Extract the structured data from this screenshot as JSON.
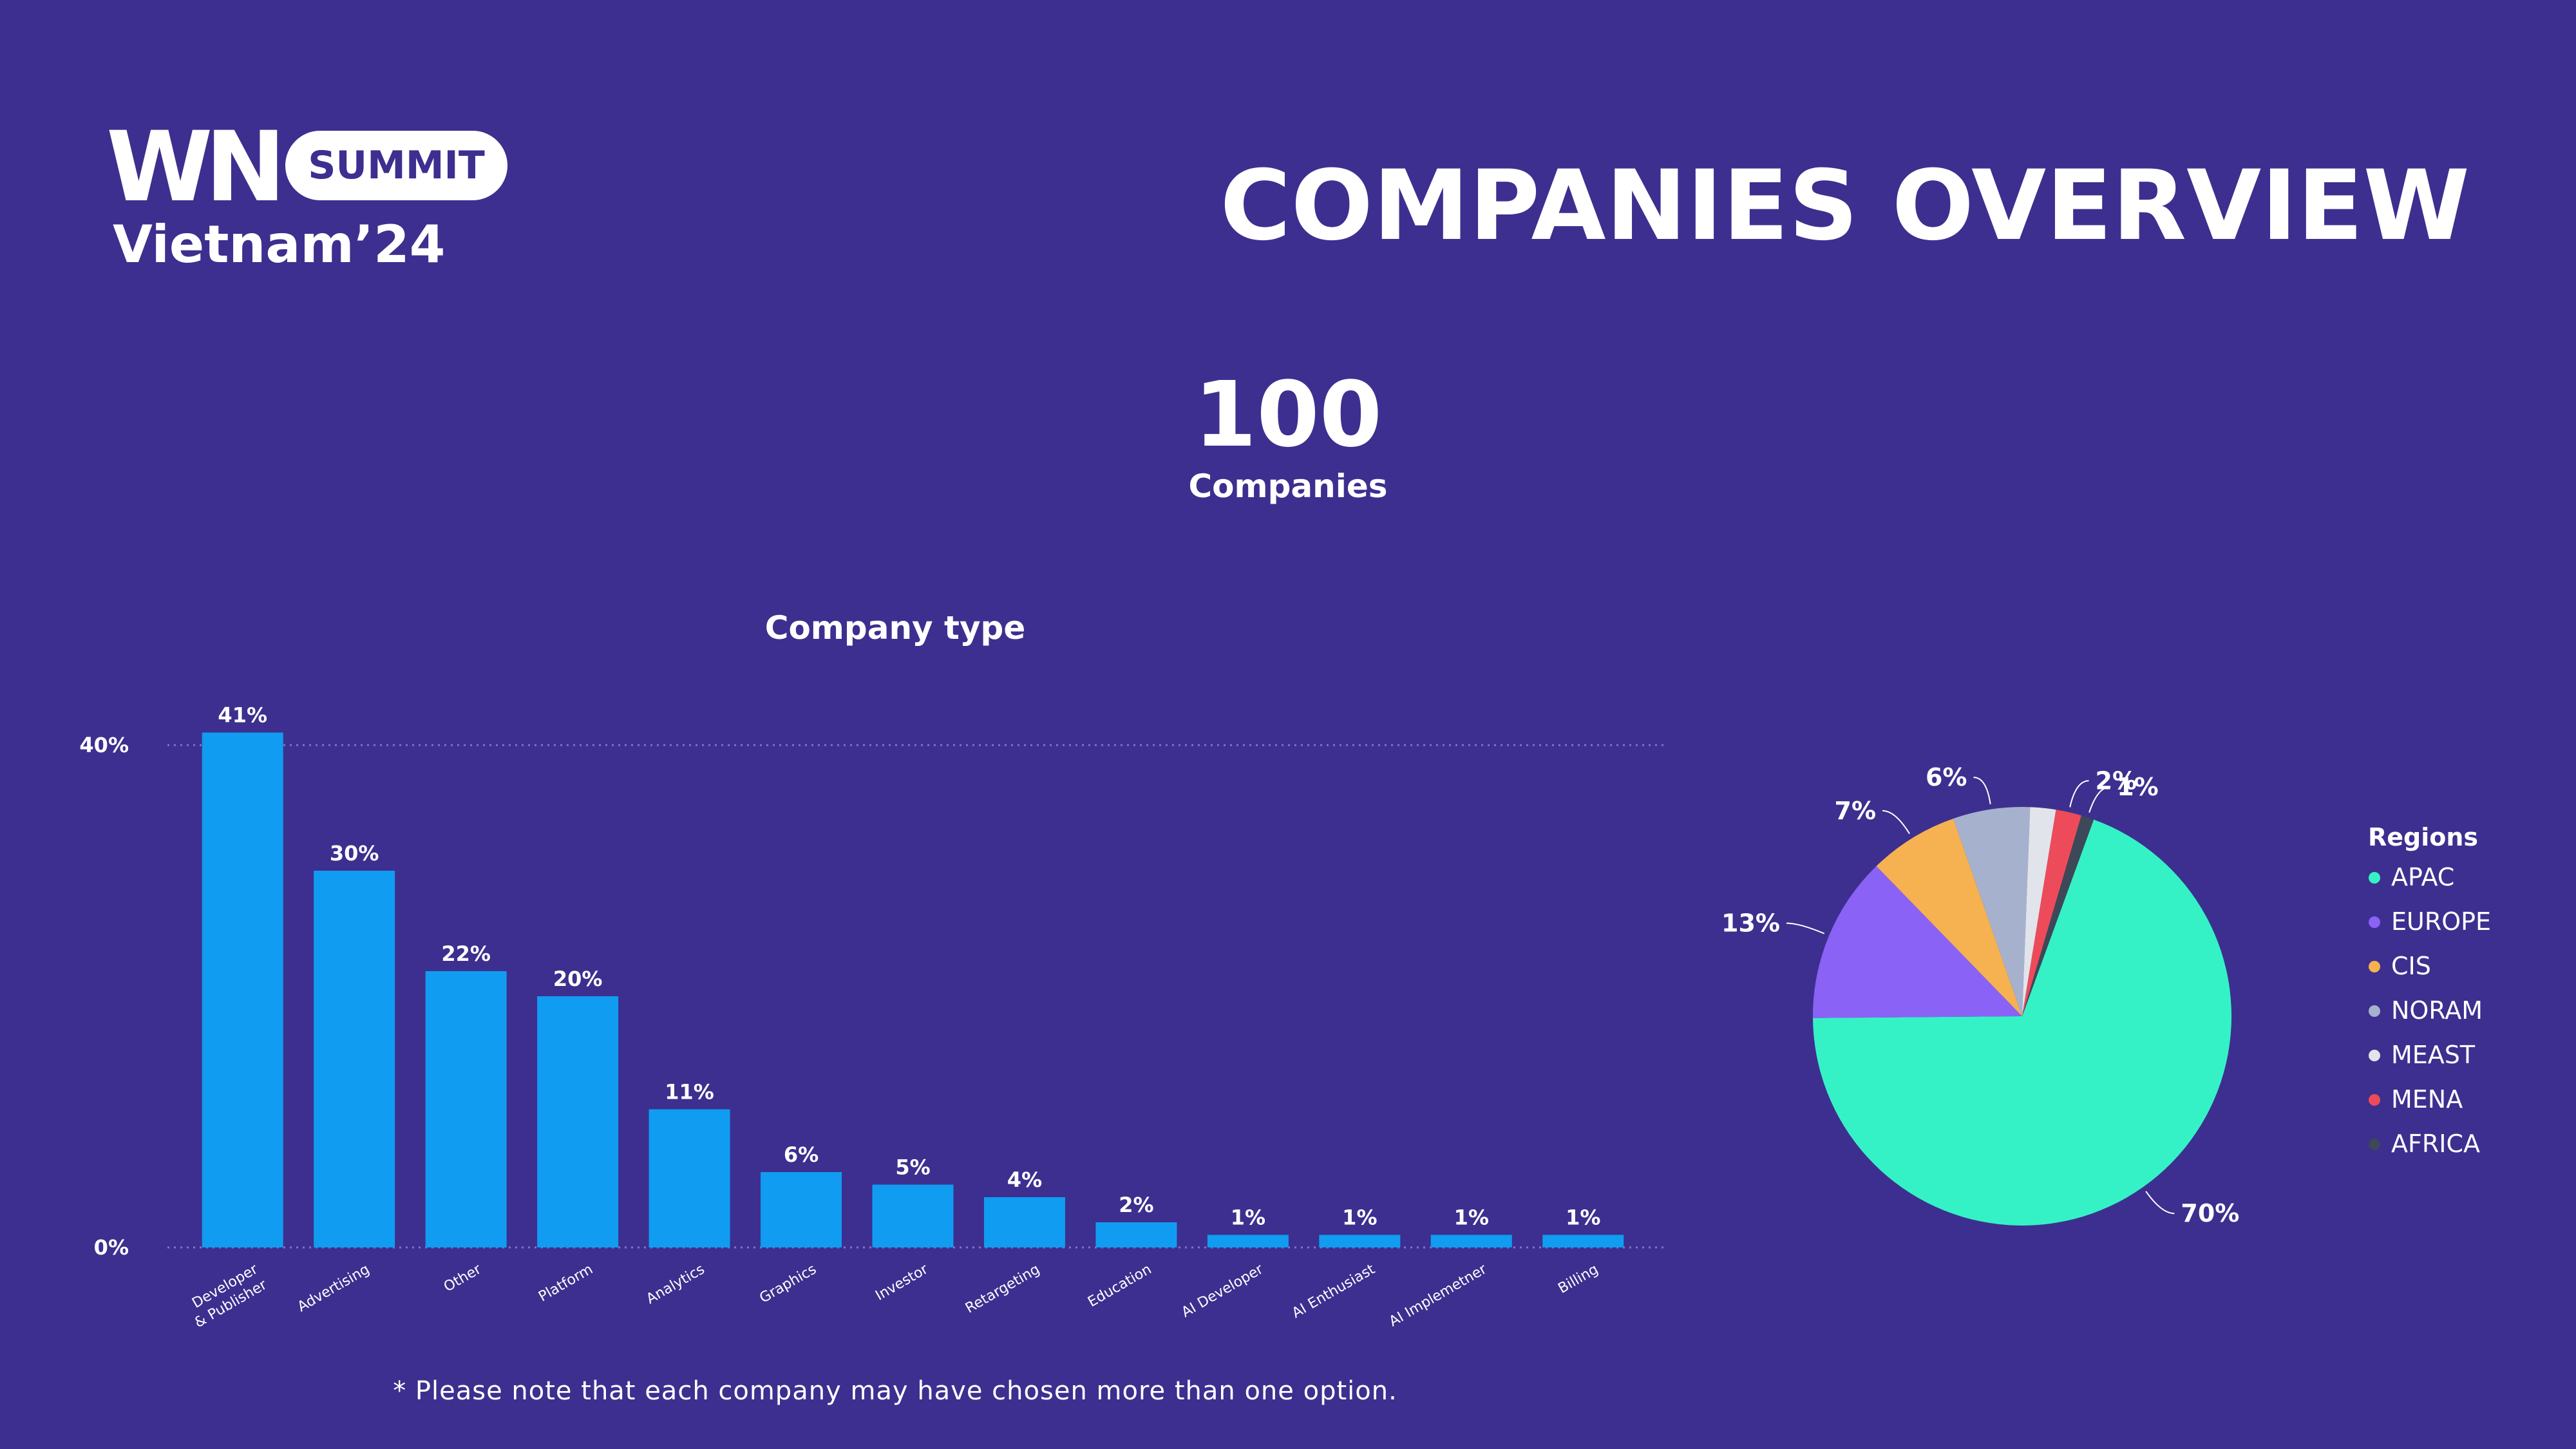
{
  "logo": {
    "brand": "WN",
    "badge": "SUMMIT",
    "subtitle": "Vietnam’24"
  },
  "title": "COMPANIES OVERVIEW",
  "total": {
    "value": "100",
    "label": "Companies"
  },
  "note": "* Please note that each company may have chosen more than one option.",
  "colors": {
    "background": "#3d2f8f",
    "bar": "#109cf1",
    "gridline": "#7e74c7"
  },
  "chart_data": [
    {
      "type": "bar",
      "title": "Company type",
      "categories": [
        "Developer\n& Publisher",
        "Advertising",
        "Other",
        "Platform",
        "Analytics",
        "Graphics",
        "Investor",
        "Retargeting",
        "Education",
        "AI Developer",
        "AI Enthusiast",
        "AI Implemetner",
        "Billing"
      ],
      "values": [
        41,
        30,
        22,
        20,
        11,
        6,
        5,
        4,
        2,
        1,
        1,
        1,
        1
      ],
      "value_labels": [
        "41%",
        "30%",
        "22%",
        "20%",
        "11%",
        "6%",
        "5%",
        "4%",
        "2%",
        "1%",
        "1%",
        "1%",
        "1%"
      ],
      "unit": "%",
      "y_ticks": [
        0,
        40
      ],
      "y_tick_labels": [
        "0%",
        "40%"
      ],
      "ylim": [
        0,
        40
      ],
      "grid": "dotted horizontal lines at ticks"
    },
    {
      "type": "pie",
      "legend_title": "Regions",
      "legend_position": "right",
      "slices": [
        {
          "label": "APAC",
          "value": 70,
          "value_label": "70%",
          "color": "#35f2c6"
        },
        {
          "label": "EUROPE",
          "value": 13,
          "value_label": "13%",
          "color": "#8a62f5"
        },
        {
          "label": "CIS",
          "value": 7,
          "value_label": "7%",
          "color": "#f6b151"
        },
        {
          "label": "NORAM",
          "value": 6,
          "value_label": "6%",
          "color": "#a6b2cd"
        },
        {
          "label": "MEAST",
          "value": 2,
          "value_label": "",
          "color": "#e2e4ec"
        },
        {
          "label": "MENA",
          "value": 2,
          "value_label": "2%",
          "color": "#ee4b5a"
        },
        {
          "label": "AFRICA",
          "value": 1,
          "value_label": "1%",
          "color": "#3d4858"
        }
      ]
    }
  ]
}
